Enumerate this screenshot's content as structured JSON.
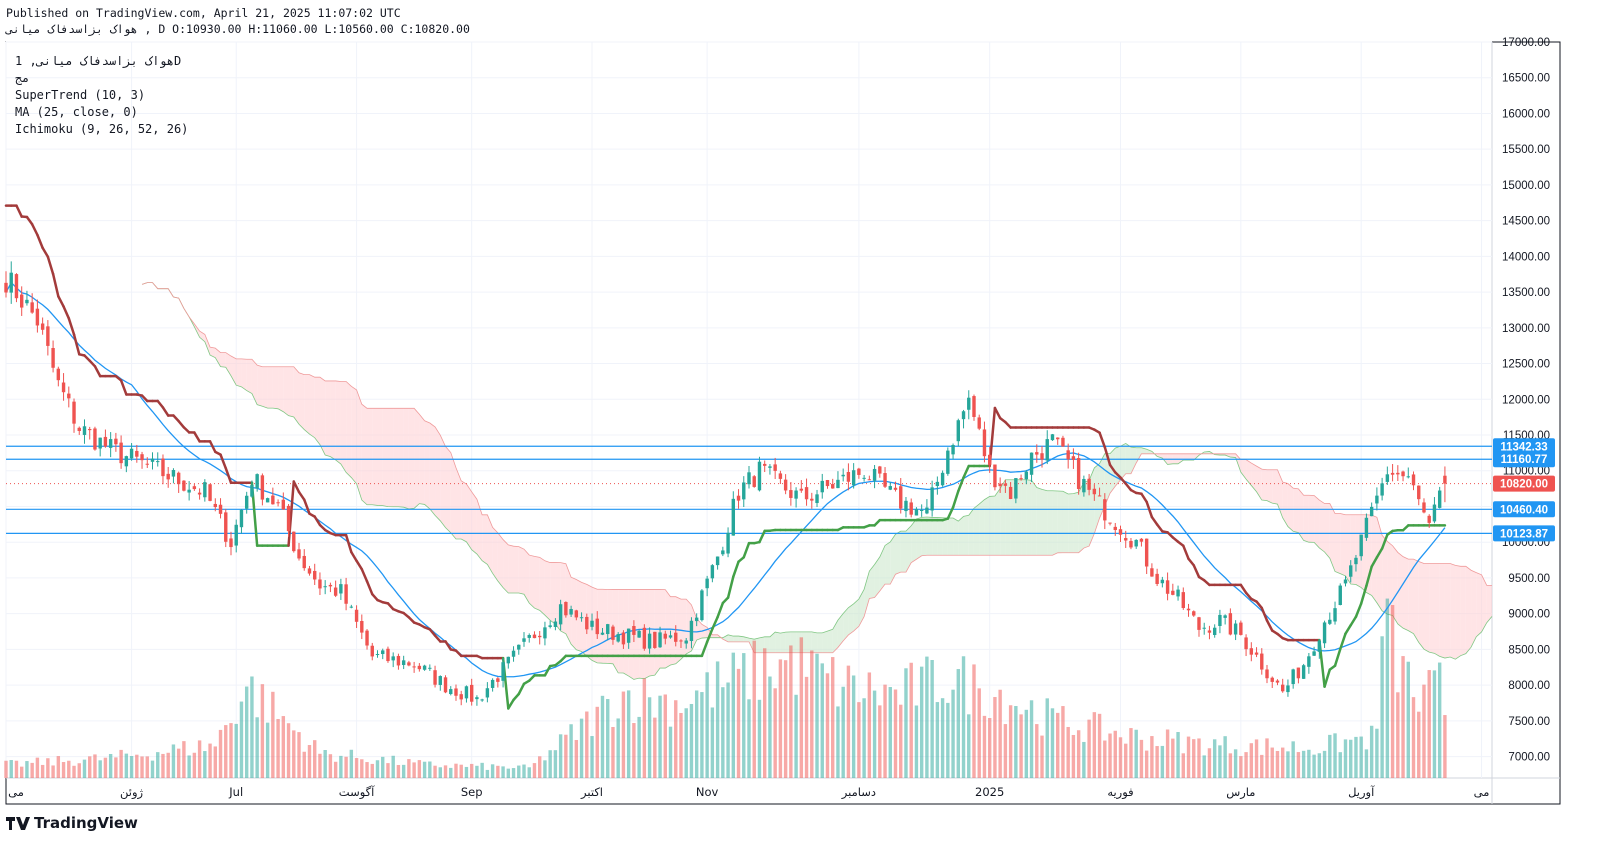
{
  "header": {
    "published": "Published on TradingView.com, April 21, 2025 11:07:02 UTC",
    "ohlc_line": "هواک بزاسدفاک میانی , D O:10930.00 H:11060.00 L:10560.00 C:10820.00"
  },
  "legend": {
    "symbol": "هواک بزاسدفاک میانی, 1D",
    "exchange": "مج",
    "supertrend": "SuperTrend (10, 3)",
    "ma": "MA (25, close, 0)",
    "ichimoku": "Ichimoku (9, 26, 52, 26)"
  },
  "brand": {
    "name": "TradingView"
  },
  "colors": {
    "up": "#26a69a",
    "down": "#ef5350",
    "supertrend_up": "#43a047",
    "supertrend_down": "#a33b3b",
    "ma": "#2196f3",
    "cloud_bull": "#c8e6c9",
    "cloud_bear": "#ffcdd2",
    "hline": "#2196f3",
    "last_price": "#ef5350"
  },
  "chart_data": {
    "type": "candlestick",
    "ylim": [
      6700,
      17000
    ],
    "y_ticks": [
      "7000.00",
      "7500.00",
      "8000.00",
      "8500.00",
      "9000.00",
      "9500.00",
      "10000.00",
      "10500.00",
      "11000.00",
      "11500.00",
      "12000.00",
      "12500.00",
      "13000.00",
      "13500.00",
      "14000.00",
      "14500.00",
      "15000.00",
      "15500.00",
      "16000.00",
      "16500.00",
      "17000.00"
    ],
    "x_labels": [
      "می",
      "ژوئن",
      "Jul",
      "آگوست",
      "Sep",
      "اکتبر",
      "Nov",
      "دسامبر",
      "2025",
      "فوریه",
      "مارس",
      "آوریل",
      "می"
    ],
    "x_label_positions": [
      0,
      24,
      44,
      67,
      89,
      112,
      134,
      163,
      188,
      213,
      236,
      259,
      282
    ],
    "x_range": [
      0,
      284
    ],
    "horizontal_lines": [
      {
        "label": "11342.33",
        "value": 11342.33
      },
      {
        "label": "11160.77",
        "value": 11160.77
      },
      {
        "label": "10460.40",
        "value": 10460.4
      },
      {
        "label": "10123.87",
        "value": 10123.87
      }
    ],
    "last_price": {
      "label": "10820.00",
      "value": 10820
    },
    "last_ohlc": {
      "open": 10930,
      "high": 11060,
      "low": 10560,
      "close": 10820
    },
    "close_anchors": [
      [
        0,
        13700
      ],
      [
        6,
        13100
      ],
      [
        10,
        12200
      ],
      [
        14,
        11600
      ],
      [
        20,
        11300
      ],
      [
        26,
        11100
      ],
      [
        32,
        10900
      ],
      [
        38,
        10700
      ],
      [
        43,
        10000
      ],
      [
        47,
        10900
      ],
      [
        52,
        10500
      ],
      [
        56,
        9800
      ],
      [
        60,
        9400
      ],
      [
        64,
        9300
      ],
      [
        70,
        8400
      ],
      [
        78,
        8300
      ],
      [
        84,
        8000
      ],
      [
        90,
        7800
      ],
      [
        96,
        8300
      ],
      [
        102,
        8800
      ],
      [
        106,
        9100
      ],
      [
        112,
        8800
      ],
      [
        118,
        8700
      ],
      [
        124,
        8600
      ],
      [
        130,
        8700
      ],
      [
        136,
        9800
      ],
      [
        140,
        10700
      ],
      [
        144,
        11000
      ],
      [
        152,
        10600
      ],
      [
        158,
        10800
      ],
      [
        164,
        11000
      ],
      [
        170,
        10600
      ],
      [
        176,
        10400
      ],
      [
        180,
        11300
      ],
      [
        184,
        12000
      ],
      [
        188,
        11000
      ],
      [
        192,
        10700
      ],
      [
        196,
        11200
      ],
      [
        200,
        11400
      ],
      [
        204,
        11000
      ],
      [
        208,
        10600
      ],
      [
        212,
        10300
      ],
      [
        216,
        10000
      ],
      [
        220,
        9500
      ],
      [
        224,
        9200
      ],
      [
        228,
        8800
      ],
      [
        232,
        8900
      ],
      [
        236,
        8700
      ],
      [
        240,
        8300
      ],
      [
        244,
        7900
      ],
      [
        248,
        8300
      ],
      [
        252,
        8900
      ],
      [
        256,
        9400
      ],
      [
        260,
        10200
      ],
      [
        264,
        11000
      ],
      [
        268,
        10900
      ],
      [
        272,
        10200
      ],
      [
        275,
        10820
      ]
    ],
    "volume_anchors": [
      [
        0,
        0.08
      ],
      [
        20,
        0.12
      ],
      [
        40,
        0.2
      ],
      [
        46,
        0.55
      ],
      [
        60,
        0.15
      ],
      [
        80,
        0.08
      ],
      [
        100,
        0.06
      ],
      [
        118,
        0.5
      ],
      [
        128,
        0.45
      ],
      [
        140,
        0.6
      ],
      [
        150,
        0.7
      ],
      [
        160,
        0.55
      ],
      [
        170,
        0.5
      ],
      [
        180,
        0.6
      ],
      [
        190,
        0.5
      ],
      [
        200,
        0.35
      ],
      [
        215,
        0.25
      ],
      [
        230,
        0.2
      ],
      [
        250,
        0.18
      ],
      [
        262,
        0.25
      ],
      [
        263,
        1.0
      ],
      [
        266,
        0.7
      ],
      [
        270,
        0.45
      ],
      [
        274,
        0.55
      ],
      [
        275,
        0.3
      ]
    ]
  }
}
